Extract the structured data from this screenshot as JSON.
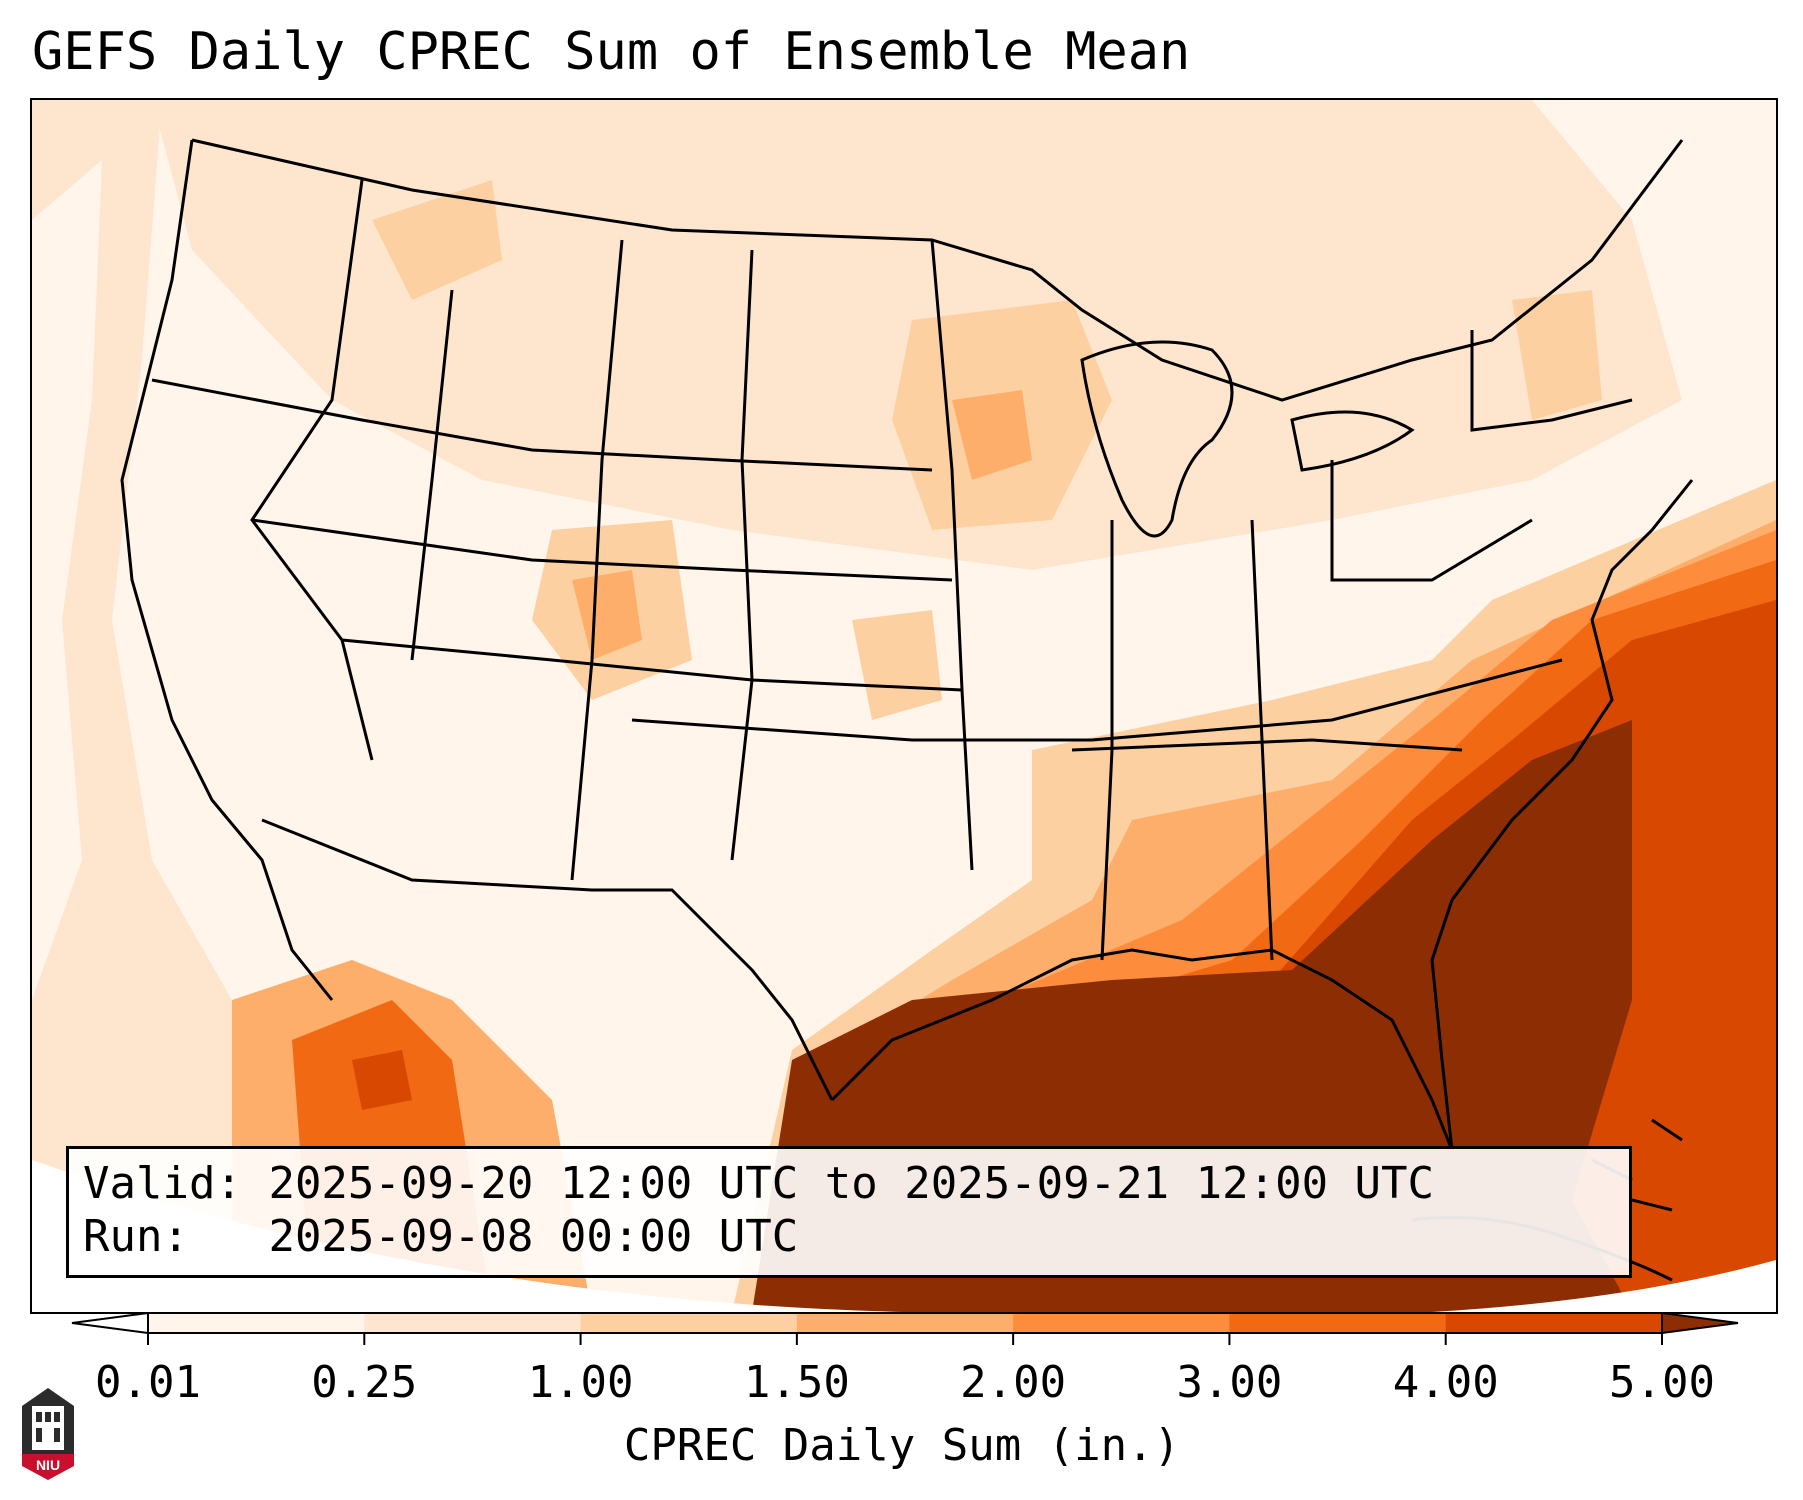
{
  "title": "GEFS Daily CPREC Sum of Ensemble Mean",
  "info": {
    "valid_label": "Valid:",
    "valid_text": "2025-09-20 12:00 UTC to 2025-09-21 12:00 UTC",
    "run_label": "Run:",
    "run_text": "2025-09-08 00:00 UTC"
  },
  "colorbar": {
    "label": "CPREC Daily Sum (in.)",
    "ticks": [
      "0.01",
      "0.25",
      "1.00",
      "1.50",
      "2.00",
      "3.00",
      "4.00",
      "5.00"
    ],
    "colors": [
      "#fff5eb",
      "#fee6ce",
      "#fdd0a2",
      "#fdae6b",
      "#fd8d3c",
      "#f16913",
      "#d94801",
      "#8c2d04"
    ],
    "extend": "both"
  },
  "logo": {
    "text": "NIU"
  },
  "map_legend": {
    "levels": [
      "0.01",
      "0.25",
      "1.00",
      "1.50",
      "2.00",
      "3.00",
      "4.00",
      "5.00"
    ]
  }
}
